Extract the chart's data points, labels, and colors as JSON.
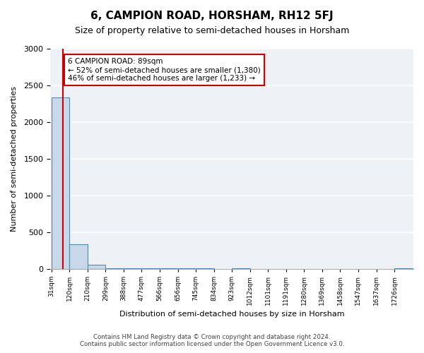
{
  "title": "6, CAMPION ROAD, HORSHAM, RH12 5FJ",
  "subtitle": "Size of property relative to semi-detached houses in Horsham",
  "xlabel": "Distribution of semi-detached houses by size in Horsham",
  "ylabel": "Number of semi-detached properties",
  "footer_line1": "Contains HM Land Registry data © Crown copyright and database right 2024.",
  "footer_line2": "Contains public sector information licensed under the Open Government Licence v3.0.",
  "annotation_title": "6 CAMPION ROAD: 89sqm",
  "annotation_line1": "← 52% of semi-detached houses are smaller (1,380)",
  "annotation_line2": "46% of semi-detached houses are larger (1,233) →",
  "property_size": 89,
  "bar_edges": [
    31,
    120,
    210,
    299,
    388,
    477,
    566,
    656,
    745,
    834,
    923,
    1012,
    1101,
    1191,
    1280,
    1369,
    1458,
    1547,
    1637,
    1726,
    1815
  ],
  "bar_heights": [
    2340,
    330,
    55,
    5,
    3,
    2,
    1,
    1,
    1,
    0,
    1,
    0,
    0,
    0,
    0,
    0,
    0,
    0,
    0,
    1
  ],
  "bar_color": "#c8d8e8",
  "bar_edge_color": "#5588aa",
  "property_line_color": "#cc0000",
  "annotation_box_color": "#cc0000",
  "background_color": "#eef2f7",
  "ylim": [
    0,
    3000
  ],
  "xlim": [
    31,
    1815
  ]
}
